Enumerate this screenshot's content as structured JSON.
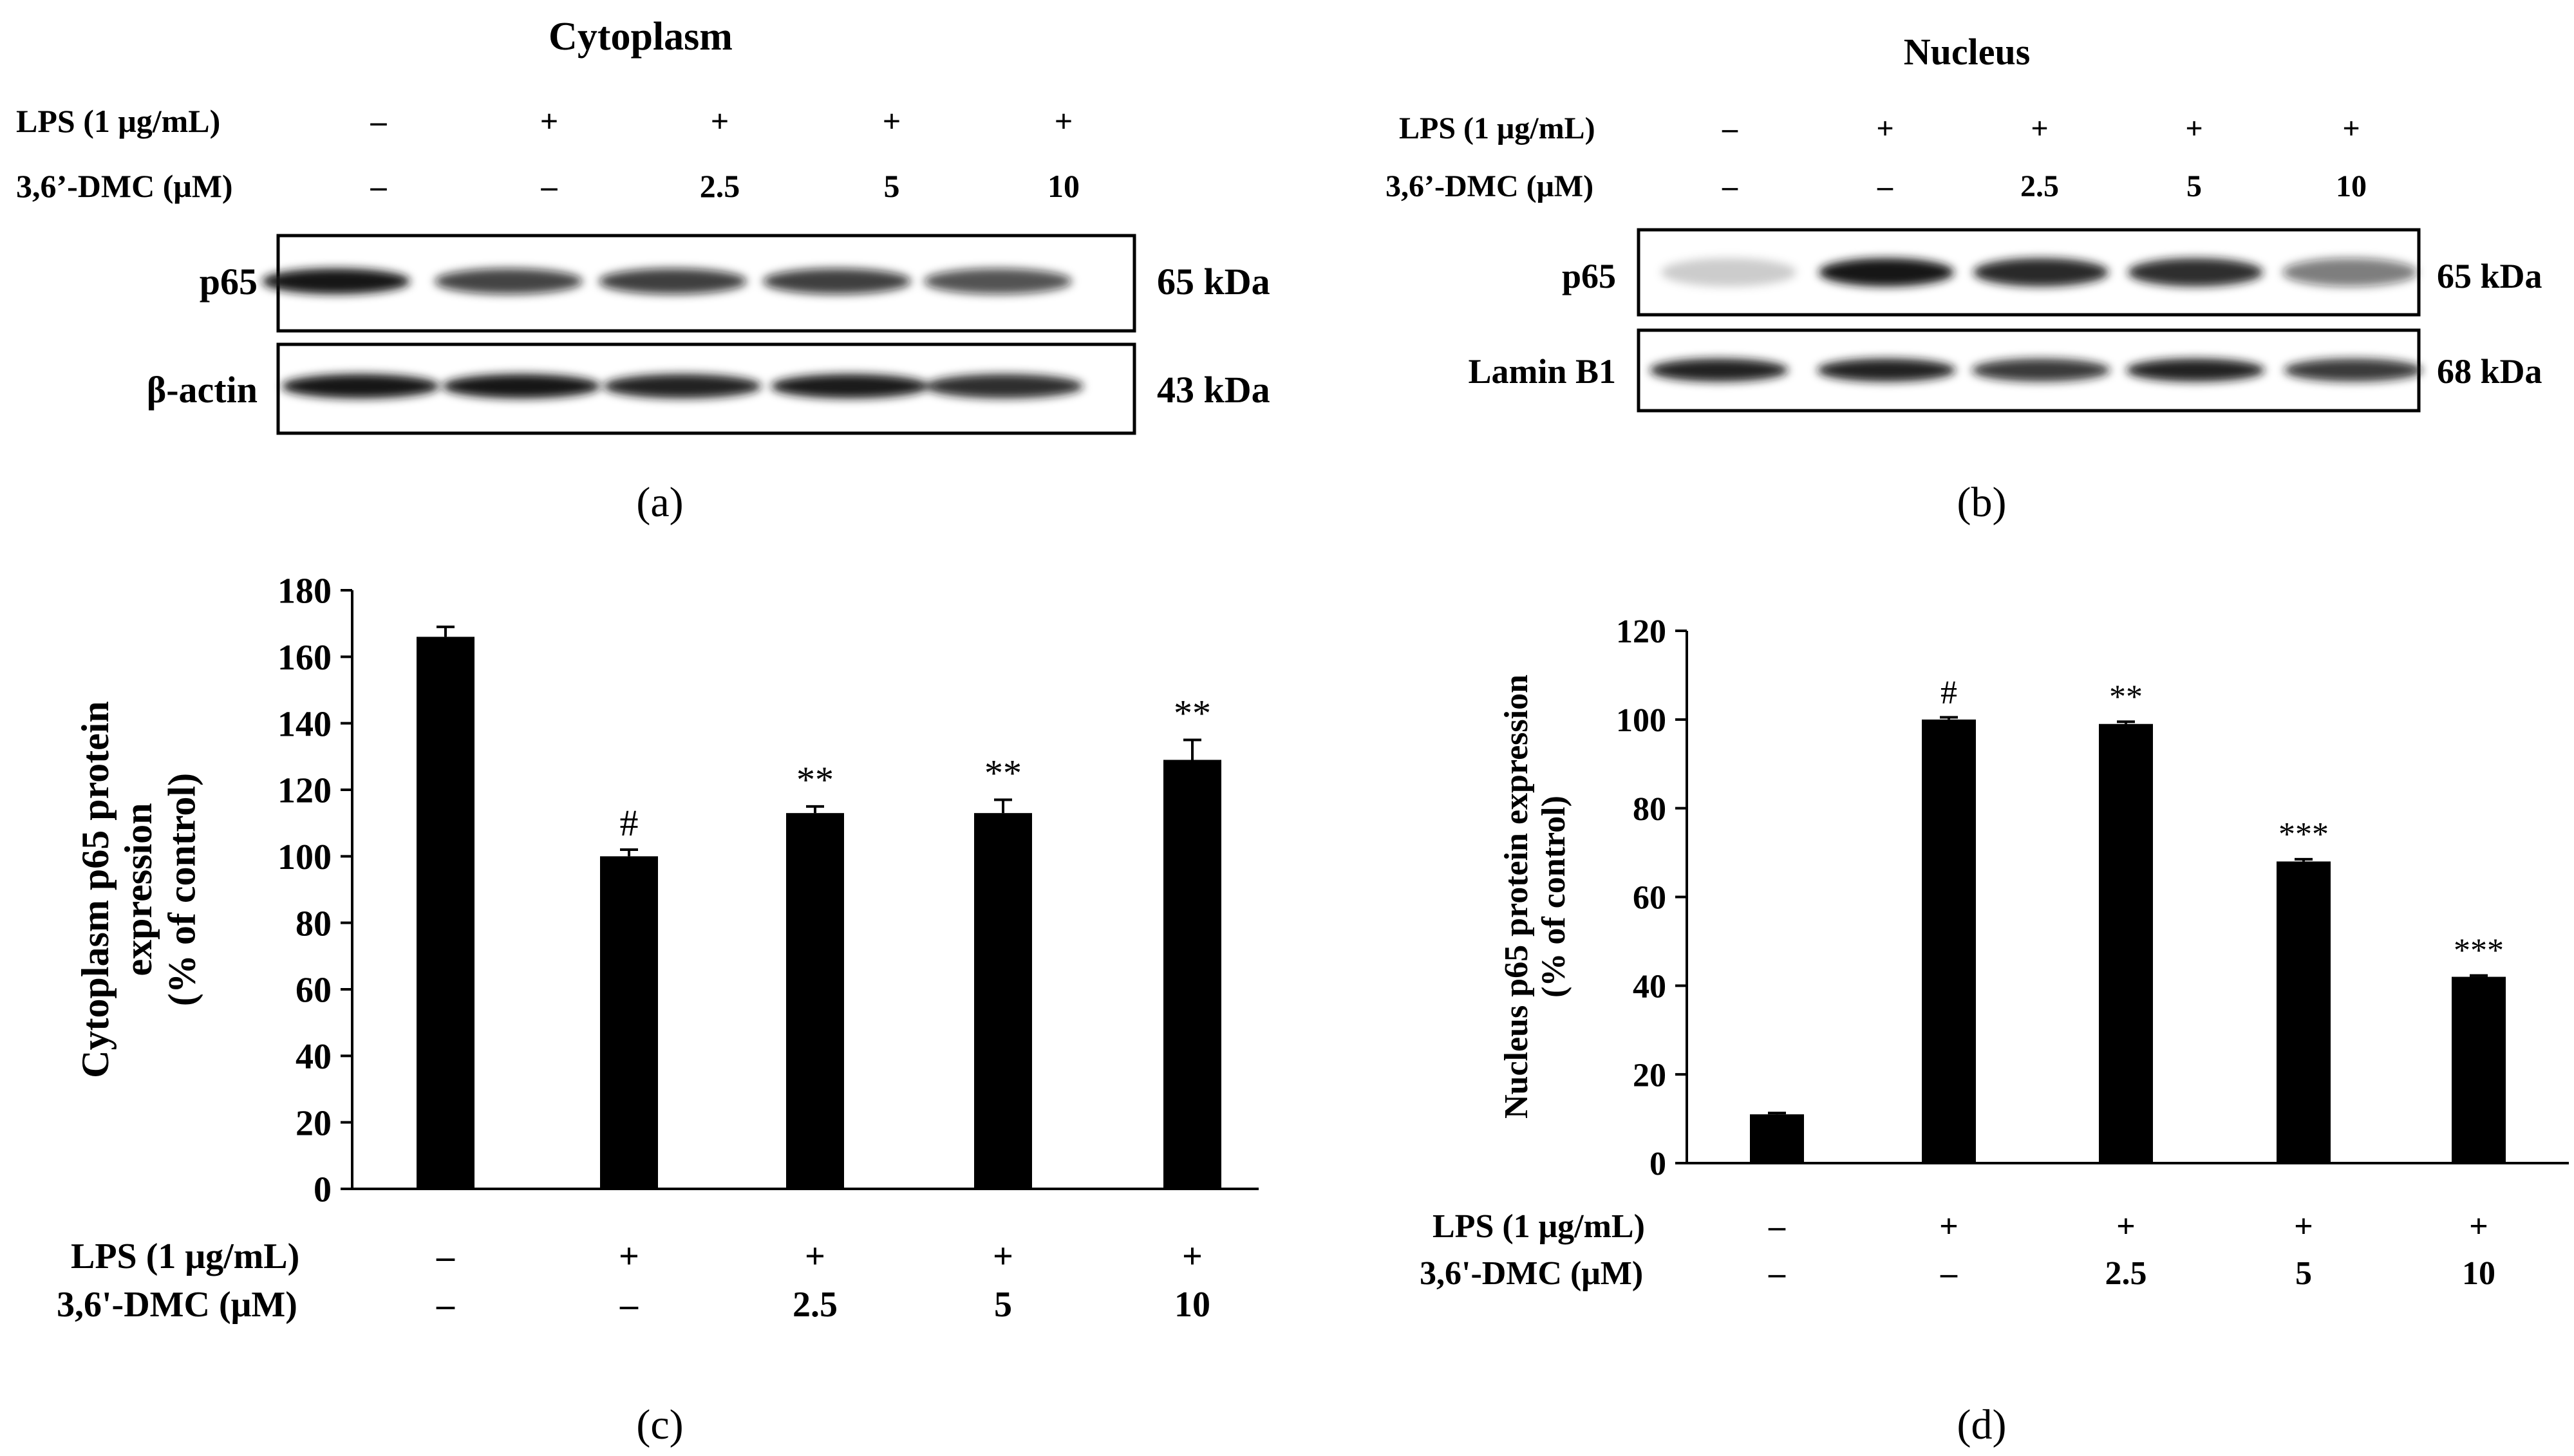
{
  "panels": {
    "a": {
      "label": "(a)",
      "title": "Cytoplasm",
      "treatment_labels": [
        "LPS (1 μg/mL)",
        "3,6’-DMC (μM)"
      ],
      "lps": [
        "–",
        "+",
        "+",
        "+",
        "+"
      ],
      "dmc": [
        "–",
        "–",
        "2.5",
        "5",
        "10"
      ],
      "blots": [
        {
          "name": "p65",
          "kda": "65 kDa"
        },
        {
          "name": "β-actin",
          "kda": "43 kDa"
        }
      ]
    },
    "b": {
      "label": "(b)",
      "title": "Nucleus",
      "treatment_labels": [
        "LPS (1 μg/mL)",
        "3,6’-DMC (μM)"
      ],
      "lps": [
        "–",
        "+",
        "+",
        "+",
        "+"
      ],
      "dmc": [
        "–",
        "–",
        "2.5",
        "5",
        "10"
      ],
      "blots": [
        {
          "name": "p65",
          "kda": "65 kDa"
        },
        {
          "name": "Lamin B1",
          "kda": "68 kDa"
        }
      ]
    },
    "c": {
      "label": "(c)",
      "treatment_labels": [
        "LPS (1 μg/mL)",
        "3,6'-DMC (μM)"
      ],
      "lps": [
        "–",
        "+",
        "+",
        "+",
        "+"
      ],
      "dmc": [
        "–",
        "–",
        "2.5",
        "5",
        "10"
      ]
    },
    "d": {
      "label": "(d)",
      "treatment_labels": [
        "LPS (1 μg/mL)",
        "3,6'-DMC (μM)"
      ],
      "lps": [
        "–",
        "+",
        "+",
        "+",
        "+"
      ],
      "dmc": [
        "–",
        "–",
        "2.5",
        "5",
        "10"
      ]
    }
  },
  "chart_data": [
    {
      "type": "bar",
      "panel": "c",
      "categories": [
        "1",
        "2",
        "3",
        "4",
        "5"
      ],
      "values": [
        166,
        100,
        113,
        113,
        129
      ],
      "errors": [
        3,
        2,
        2,
        4,
        6
      ],
      "annotations": [
        "",
        "#",
        "**",
        "**",
        "**"
      ],
      "ylabel_lines": [
        "Cytoplasm p65 protein",
        "expression",
        "(% of control)"
      ],
      "ylim": [
        0,
        180
      ],
      "yticks": [
        0,
        20,
        40,
        60,
        80,
        100,
        120,
        140,
        160,
        180
      ],
      "color": "#000000"
    },
    {
      "type": "bar",
      "panel": "d",
      "categories": [
        "1",
        "2",
        "3",
        "4",
        "5"
      ],
      "values": [
        11,
        100,
        99,
        68,
        42
      ],
      "errors": [
        0.3,
        0.5,
        0.5,
        0.5,
        0.3
      ],
      "annotations": [
        "",
        "#",
        "**",
        "***",
        "***"
      ],
      "ylabel_lines": [
        "Nucleus p65 protein expression",
        "(% of control)"
      ],
      "ylim": [
        0,
        120
      ],
      "yticks": [
        0,
        20,
        40,
        60,
        80,
        100,
        120
      ],
      "color": "#000000"
    }
  ]
}
